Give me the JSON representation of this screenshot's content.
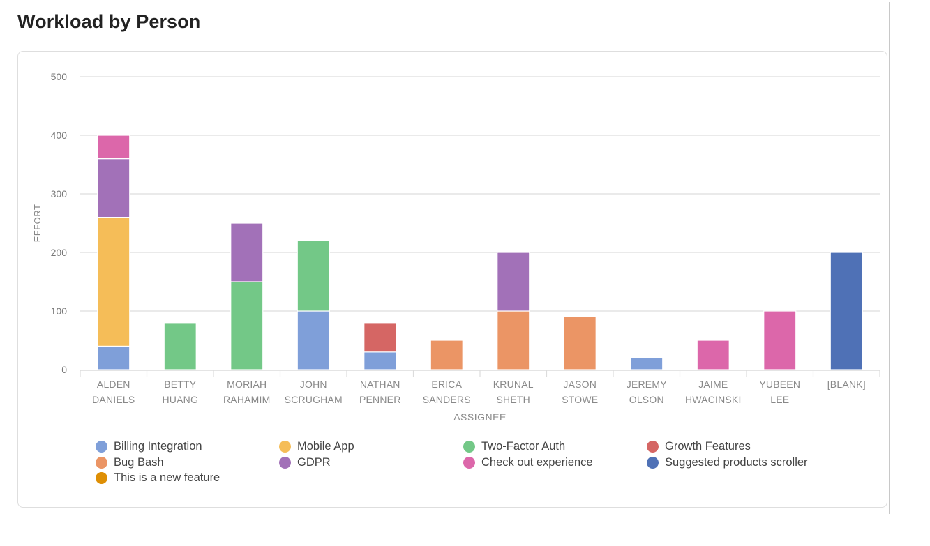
{
  "page": {
    "title": "Workload by Person"
  },
  "chart_data": {
    "type": "bar",
    "stacked": true,
    "title": "Workload by Person",
    "xlabel": "ASSIGNEE",
    "ylabel": "EFFORT",
    "ylim": [
      0,
      500
    ],
    "yticks": [
      0,
      100,
      200,
      300,
      400,
      500
    ],
    "grid": true,
    "legend_position": "bottom",
    "categories": [
      [
        "ALDEN",
        "DANIELS"
      ],
      [
        "BETTY",
        "HUANG"
      ],
      [
        "MORIAH",
        "RAHAMIM"
      ],
      [
        "JOHN",
        "SCRUGHAM"
      ],
      [
        "NATHAN",
        "PENNER"
      ],
      [
        "ERICA",
        "SANDERS"
      ],
      [
        "KRUNAL",
        "SHETH"
      ],
      [
        "JASON",
        "STOWE"
      ],
      [
        "JEREMY",
        "OLSON"
      ],
      [
        "JAIME",
        "HWACINSKI"
      ],
      [
        "YUBEEN",
        "LEE"
      ],
      [
        "[BLANK]"
      ]
    ],
    "series": [
      {
        "name": "Billing Integration",
        "color": "#7f9fd9",
        "values": [
          40,
          0,
          0,
          100,
          30,
          0,
          0,
          0,
          20,
          0,
          0,
          0
        ]
      },
      {
        "name": "Bug Bash",
        "color": "#eb9565",
        "values": [
          0,
          0,
          0,
          0,
          0,
          50,
          100,
          90,
          0,
          0,
          0,
          0
        ]
      },
      {
        "name": "This is a new feature",
        "color": "#de8f05",
        "values": [
          0,
          0,
          0,
          0,
          0,
          0,
          0,
          0,
          0,
          0,
          0,
          0
        ]
      },
      {
        "name": "Mobile App",
        "color": "#f5bd58",
        "values": [
          220,
          0,
          0,
          0,
          0,
          0,
          0,
          0,
          0,
          0,
          0,
          0
        ]
      },
      {
        "name": "GDPR",
        "color": "#a271b8",
        "values": [
          100,
          0,
          100,
          0,
          0,
          0,
          100,
          0,
          0,
          0,
          0,
          0
        ]
      },
      {
        "name": "Two-Factor Auth",
        "color": "#73c887",
        "values": [
          0,
          80,
          150,
          120,
          0,
          0,
          0,
          0,
          0,
          0,
          0,
          0
        ]
      },
      {
        "name": "Check out experience",
        "color": "#dc67aa",
        "values": [
          40,
          0,
          0,
          0,
          0,
          0,
          0,
          0,
          0,
          50,
          100,
          0
        ]
      },
      {
        "name": "Growth Features",
        "color": "#d56664",
        "values": [
          0,
          0,
          0,
          0,
          50,
          0,
          0,
          0,
          0,
          0,
          0,
          0
        ]
      },
      {
        "name": "Suggested products scroller",
        "color": "#4f71b6",
        "values": [
          0,
          0,
          0,
          0,
          0,
          0,
          0,
          0,
          0,
          0,
          0,
          200
        ]
      }
    ],
    "stack_order": [
      "Billing Integration",
      "Bug Bash",
      "Two-Factor Auth",
      "Mobile App",
      "GDPR",
      "Growth Features",
      "Check out experience",
      "Suggested products scroller",
      "This is a new feature"
    ],
    "legend": [
      {
        "name": "Billing Integration",
        "color": "#7f9fd9"
      },
      {
        "name": "Bug Bash",
        "color": "#eb9565"
      },
      {
        "name": "This is a new feature",
        "color": "#de8f05"
      },
      {
        "name": "Mobile App",
        "color": "#f5bd58"
      },
      {
        "name": "GDPR",
        "color": "#a271b8"
      },
      {
        "name": "Two-Factor Auth",
        "color": "#73c887"
      },
      {
        "name": "Check out experience",
        "color": "#dc67aa"
      },
      {
        "name": "Growth Features",
        "color": "#d56664"
      },
      {
        "name": "Suggested products scroller",
        "color": "#4f71b6"
      }
    ]
  }
}
